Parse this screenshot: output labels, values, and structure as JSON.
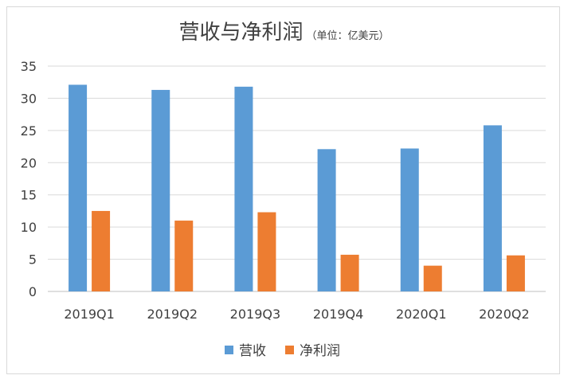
{
  "chart_data": {
    "type": "bar",
    "title": "营收与净利润",
    "subtitle": "（单位：亿美元）",
    "categories": [
      "2019Q1",
      "2019Q2",
      "2019Q3",
      "2019Q4",
      "2020Q1",
      "2020Q2"
    ],
    "series": [
      {
        "name": "营收",
        "color": "#5b9bd5",
        "values": [
          32.1,
          31.3,
          31.8,
          22.1,
          22.2,
          25.8
        ]
      },
      {
        "name": "净利润",
        "color": "#ed7d31",
        "values": [
          12.5,
          11.0,
          12.3,
          5.7,
          4.0,
          5.6
        ]
      }
    ],
    "ylim": [
      0,
      35
    ],
    "yticks": [
      0,
      5,
      10,
      15,
      20,
      25,
      30,
      35
    ],
    "grid": true,
    "legend": "bottom"
  }
}
